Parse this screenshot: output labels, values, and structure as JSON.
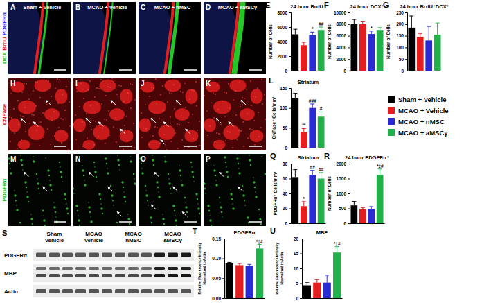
{
  "chart_data": [
    {
      "letter": "E",
      "type": "bar",
      "title": "24 hour BrdU⁺",
      "ylabel": [
        "Number of Cells"
      ],
      "categories": [
        null,
        null,
        null,
        null
      ],
      "values": [
        5000,
        3500,
        4900,
        5600
      ],
      "errors": [
        700,
        400,
        400,
        400
      ],
      "annotations": [
        null,
        null,
        "*",
        "##"
      ],
      "colors": [
        "#000000",
        "#e41e1e",
        "#2b2bd6",
        "#22b04a"
      ],
      "ylim": [
        0,
        8000
      ],
      "yticks": [
        0,
        2000,
        4000,
        6000,
        8000
      ],
      "tick_labels": "y"
    },
    {
      "letter": "F",
      "type": "bar",
      "title": "24 hour DCX⁺",
      "ylabel": [
        "Number of Cells"
      ],
      "categories": [
        null,
        null,
        null,
        null
      ],
      "values": [
        8000,
        8000,
        6300,
        7000
      ],
      "errors": [
        800,
        400,
        500,
        400
      ],
      "annotations": [
        null,
        null,
        "*",
        null
      ],
      "colors": [
        "#000000",
        "#e41e1e",
        "#2b2bd6",
        "#22b04a"
      ],
      "ylim": [
        0,
        10000
      ],
      "yticks": [
        0,
        2000,
        4000,
        6000,
        8000,
        10000
      ],
      "tick_labels": "y"
    },
    {
      "letter": "G",
      "type": "bar",
      "title": "24 hour BrdU⁺DCX⁺",
      "ylabel": [
        "Number of Cells"
      ],
      "categories": [
        null,
        null,
        null,
        null
      ],
      "values": [
        185,
        145,
        130,
        155
      ],
      "errors": [
        50,
        15,
        60,
        50
      ],
      "annotations": [
        null,
        null,
        null,
        null
      ],
      "colors": [
        "#000000",
        "#e41e1e",
        "#2b2bd6",
        "#22b04a"
      ],
      "ylim": [
        0,
        250
      ],
      "yticks": [
        0,
        50,
        100,
        150,
        200,
        250
      ],
      "tick_labels": "y"
    },
    {
      "letter": "L",
      "type": "bar",
      "title": "Striatum",
      "ylabel": [
        "CNPase⁺ Cells/mm²"
      ],
      "categories": [
        null,
        null,
        null,
        null
      ],
      "values": [
        125,
        40,
        100,
        78
      ],
      "errors": [
        12,
        8,
        10,
        12
      ],
      "annotations": [
        null,
        "**",
        "###",
        "#"
      ],
      "colors": [
        "#000000",
        "#e41e1e",
        "#2b2bd6",
        "#22b04a"
      ],
      "ylim": [
        0,
        150
      ],
      "yticks": [
        0,
        50,
        100,
        150
      ],
      "tick_labels": "y"
    },
    {
      "letter": "Q",
      "type": "bar",
      "title": "Striatum",
      "ylabel": [
        "PDGFRα⁺ Cells/mm²"
      ],
      "categories": [
        null,
        null,
        null,
        null
      ],
      "values": [
        62,
        23,
        65,
        60
      ],
      "errors": [
        10,
        6,
        6,
        8
      ],
      "annotations": [
        null,
        "*",
        "##",
        "##"
      ],
      "colors": [
        "#000000",
        "#e41e1e",
        "#2b2bd6",
        "#22b04a"
      ],
      "ylim": [
        0,
        80
      ],
      "yticks": [
        0,
        20,
        40,
        60,
        80
      ],
      "tick_labels": "y"
    },
    {
      "letter": "R",
      "type": "bar",
      "title": "24 hour PDGFRα⁺",
      "ylabel": [
        "Number of Cells"
      ],
      "categories": [
        null,
        null,
        null,
        null
      ],
      "values": [
        600,
        480,
        480,
        1620
      ],
      "errors": [
        130,
        40,
        80,
        200
      ],
      "annotations": [
        null,
        null,
        null,
        "*‡#"
      ],
      "colors": [
        "#000000",
        "#e41e1e",
        "#2b2bd6",
        "#22b04a"
      ],
      "ylim": [
        0,
        2000
      ],
      "yticks": [
        0,
        500,
        1000,
        1500,
        2000
      ],
      "tick_labels": "y"
    },
    {
      "letter": "T",
      "type": "bar",
      "title": "PDGFRα",
      "ylabel": [
        "Relative Fluorescence Intensity",
        "Normalized to Actin"
      ],
      "categories": [
        null,
        null,
        null,
        null
      ],
      "values": [
        0.088,
        0.083,
        0.081,
        0.125
      ],
      "errors": [
        0.002,
        0.004,
        0.004,
        0.01
      ],
      "annotations": [
        null,
        null,
        null,
        "*‡#"
      ],
      "colors": [
        "#000000",
        "#e41e1e",
        "#2b2bd6",
        "#22b04a"
      ],
      "ylim": [
        0,
        0.15
      ],
      "yticks": [
        {
          "value": 0,
          "label": "0.00"
        },
        0.05,
        {
          "value": 0.1,
          "label": "0.10"
        },
        0.15
      ],
      "tick_labels": "y"
    },
    {
      "letter": "U",
      "type": "bar",
      "title": "MBP",
      "ylabel": [
        "Relative Fluorescence Intensity",
        "Normalized to Actin"
      ],
      "categories": [
        null,
        null,
        null,
        null
      ],
      "values": [
        4.3,
        5.2,
        5.2,
        15.3
      ],
      "errors": [
        1,
        1,
        2.5,
        2
      ],
      "annotations": [
        null,
        null,
        null,
        "*‡#"
      ],
      "colors": [
        "#000000",
        "#e41e1e",
        "#2b2bd6",
        "#22b04a"
      ],
      "ylim": [
        0,
        20
      ],
      "yticks": [
        0,
        5,
        10,
        15,
        20
      ],
      "tick_labels": "y"
    }
  ],
  "group_legend": [
    {
      "name": "Sham + Vehicle",
      "color": "#000000"
    },
    {
      "name": "MCAO + Vehicle",
      "color": "#e41e1e"
    },
    {
      "name": "MCAO + nMSC",
      "color": "#2b2bd6"
    },
    {
      "name": "MCAO + aMSCγ",
      "color": "#22b04a"
    }
  ],
  "image_panels": {
    "column_titles": [
      "Sham + Vehicle",
      "MCAO + Vehicle",
      "MCAO + nMSC",
      "MCAO + aMSCγ"
    ],
    "rows": [
      {
        "letters": [
          "A",
          "B",
          "C",
          "D"
        ],
        "stains": [
          {
            "text": "DCX",
            "color": "#27c627"
          },
          {
            "text": "BrdU",
            "color": "#e02020"
          },
          {
            "text": "PDGFRα",
            "color": "#3030ff"
          }
        ]
      },
      {
        "letters": [
          "H",
          "I",
          "J",
          "K"
        ],
        "stains": [
          {
            "text": "CNPase",
            "color": "#e02020"
          }
        ]
      },
      {
        "letters": [
          "M",
          "N",
          "O",
          "P"
        ],
        "stains": [
          {
            "text": "PDGFRα",
            "color": "#27c627"
          }
        ]
      }
    ]
  },
  "blot": {
    "letter": "S",
    "column_headers": [
      [
        "Sham",
        "Vehicle"
      ],
      [
        "MCAO",
        "Vehicle"
      ],
      [
        "MCAO",
        "nMSC"
      ],
      [
        "MCAO",
        "aMSCγ"
      ]
    ],
    "row_labels": [
      "PDGFRα",
      "MBP",
      "Actin"
    ]
  }
}
